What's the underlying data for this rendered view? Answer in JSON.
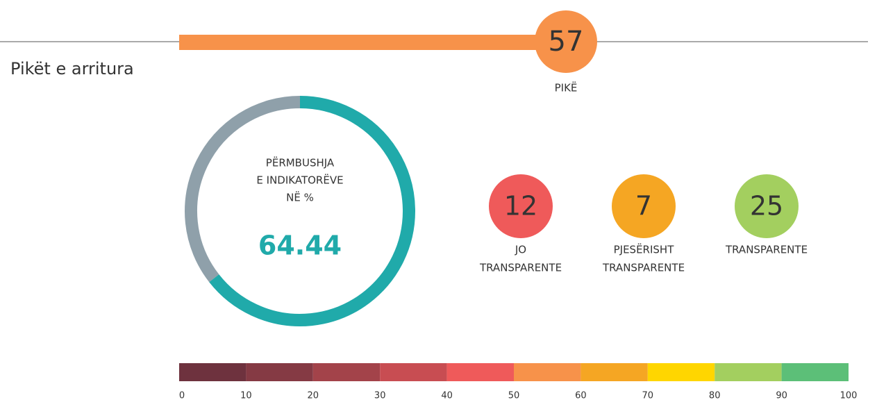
{
  "title": "Pikët e arritura",
  "score": {
    "value": 57,
    "label": "PIKË",
    "color": "#f7924a"
  },
  "compliance": {
    "label_lines": [
      "PËRMBUSHJA",
      "E INDIKATORËVE",
      "NË %"
    ],
    "value": 64.44,
    "color": "#20aaaa",
    "rest_color": "#8fa0aa"
  },
  "counts": [
    {
      "value": 12,
      "label_lines": [
        "JO",
        "TRANSPARENTE"
      ],
      "color": "#ef5a5a"
    },
    {
      "value": 7,
      "label_lines": [
        "PJESËRISHT",
        "TRANSPARENTE"
      ],
      "color": "#f5a623"
    },
    {
      "value": 25,
      "label_lines": [
        "TRANSPARENTE"
      ],
      "color": "#a3cf5f"
    }
  ],
  "scale": {
    "ticks": [
      0,
      10,
      20,
      30,
      40,
      50,
      60,
      70,
      80,
      90,
      100
    ],
    "colors": [
      "#6e323e",
      "#853a44",
      "#a3434a",
      "#c84d52",
      "#ef5a5a",
      "#f7924a",
      "#f5a623",
      "#ffd600",
      "#a3cf5f",
      "#5cbf78"
    ]
  }
}
